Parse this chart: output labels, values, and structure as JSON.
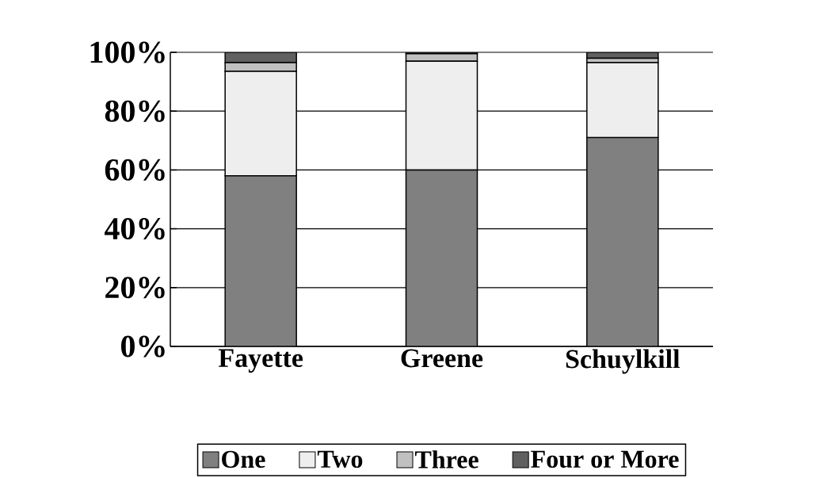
{
  "chart_data": {
    "type": "bar",
    "stacked": true,
    "categories": [
      "Fayette",
      "Greene",
      "Schuylkill"
    ],
    "series": [
      {
        "name": "One",
        "color": "#808080",
        "values": [
          58,
          60,
          71
        ]
      },
      {
        "name": "Two",
        "color": "#eeeeee",
        "values": [
          35.5,
          37,
          25.5
        ]
      },
      {
        "name": "Three",
        "color": "#c0c0c0",
        "values": [
          3,
          2.5,
          1.5
        ]
      },
      {
        "name": "Four or More",
        "color": "#606060",
        "values": [
          3.5,
          0.5,
          2
        ]
      }
    ],
    "ylim": [
      0,
      100
    ],
    "yticks": [
      {
        "value": 0,
        "label": "0%"
      },
      {
        "value": 20,
        "label": "20%"
      },
      {
        "value": 40,
        "label": "40%"
      },
      {
        "value": 60,
        "label": "60%"
      },
      {
        "value": 80,
        "label": "80%"
      },
      {
        "value": 100,
        "label": "100%"
      }
    ],
    "grid": "y",
    "legend": "bottom"
  }
}
